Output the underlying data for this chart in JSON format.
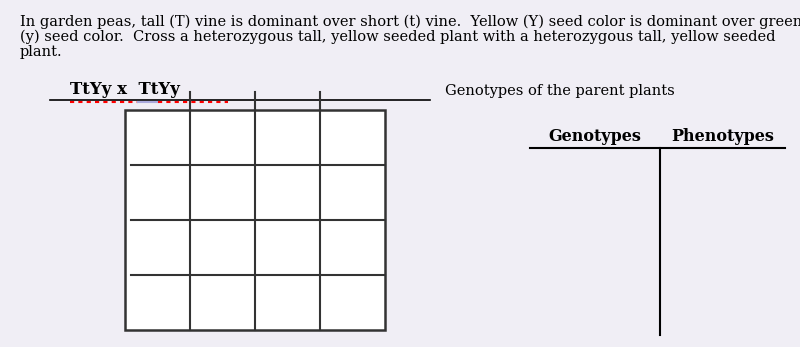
{
  "background_color": "#f0eef5",
  "paragraph_text_line1": "In garden peas, tall (T) vine is dominant over short (t) vine.  Yellow (Y) seed color is dominant over green",
  "paragraph_text_line2": "(y) seed color.  Cross a heterozygous tall, yellow seeded plant with a heterozygous tall, yellow seeded",
  "paragraph_text_line3": "plant.",
  "genotype_label": "TtYy x  TtYy",
  "genotype_suffix": "Genotypes of the parent plants",
  "col_header1": "Genotypes",
  "col_header2": "Phenotypes",
  "grid_rows": 4,
  "grid_cols": 4,
  "text_color": "#000000",
  "paragraph_fontsize": 10.5,
  "genotype_fontsize": 12,
  "header_fontsize": 11.5
}
